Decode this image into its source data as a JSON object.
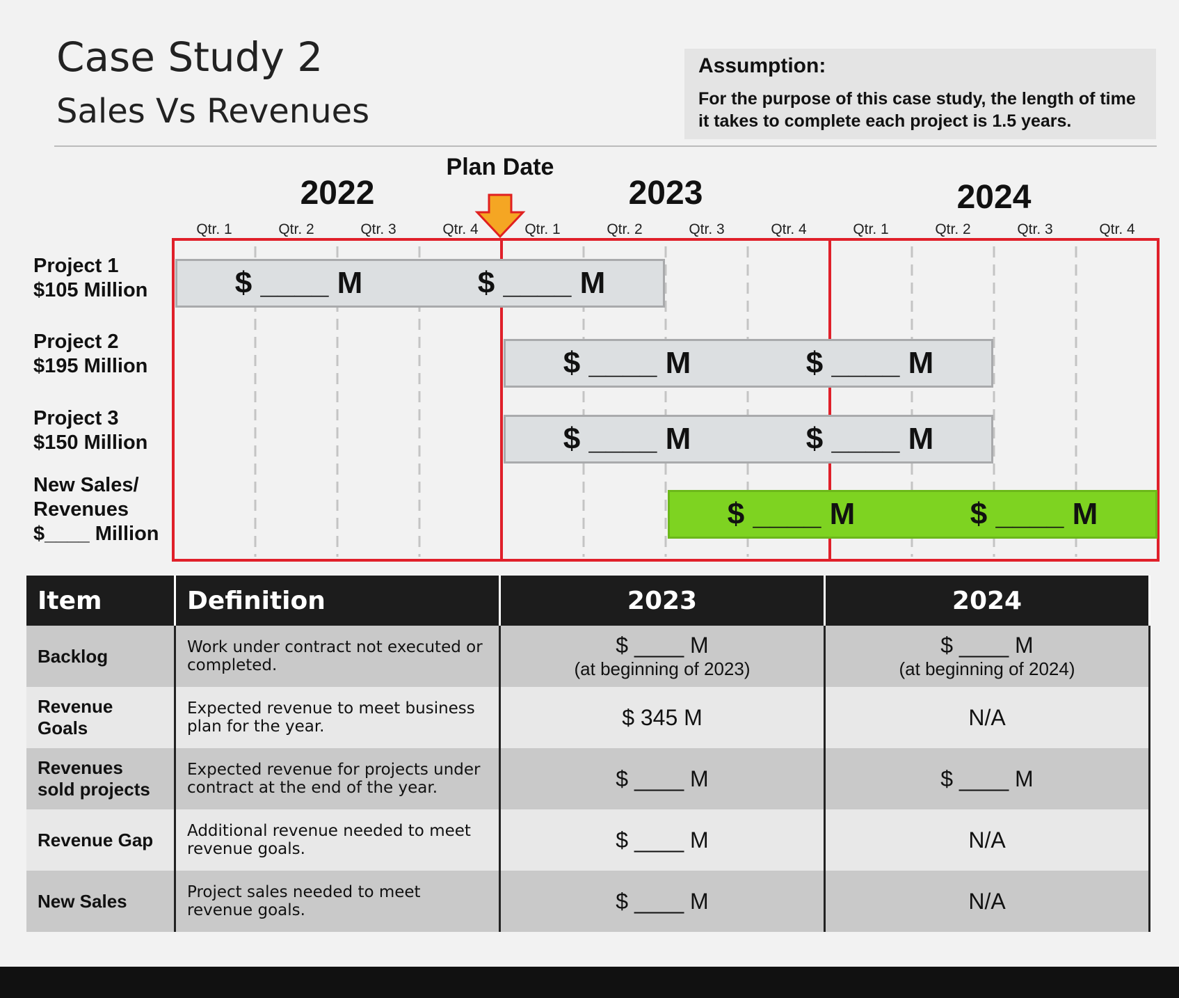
{
  "header": {
    "title": "Case Study 2",
    "subtitle": "Sales Vs Revenues"
  },
  "assumption": {
    "title": "Assumption:",
    "text": "For the purpose of this case study, the length of time it takes to complete each project is 1.5 years."
  },
  "timeline": {
    "plan_date": "Plan Date",
    "years": [
      "2022",
      "2023",
      "2024"
    ],
    "quarters": [
      "Qtr. 1",
      "Qtr. 2",
      "Qtr. 3",
      "Qtr. 4",
      "Qtr. 1",
      "Qtr. 2",
      "Qtr. 3",
      "Qtr. 4",
      "Qtr. 1",
      "Qtr. 2",
      "Qtr. 3",
      "Qtr. 4"
    ],
    "rows": [
      {
        "label": [
          "Project 1",
          "$105 Million"
        ],
        "bar": [
          "$ ____ M",
          "$ ____ M"
        ]
      },
      {
        "label": [
          "Project 2",
          "$195 Million"
        ],
        "bar": [
          "$ ____ M",
          "$ ____ M"
        ]
      },
      {
        "label": [
          "Project 3",
          "$150 Million"
        ],
        "bar": [
          "$ ____ M",
          "$ ____ M"
        ]
      },
      {
        "label": [
          "New Sales/",
          "Revenues",
          "$____ Million"
        ],
        "bar": [
          "$ ____ M",
          "$ ____ M"
        ]
      }
    ]
  },
  "table": {
    "headers": [
      "Item",
      "Definition",
      "2023",
      "2024"
    ],
    "rows": [
      [
        "Backlog",
        "Work under contract not executed or completed.",
        {
          "main": "$ ____ M",
          "note": "(at beginning of 2023)"
        },
        {
          "main": "$ ____ M",
          "note": "(at beginning of 2024)"
        }
      ],
      [
        "Revenue Goals",
        "Expected revenue to meet business plan for the year.",
        "$ 345 M",
        "N/A"
      ],
      [
        "Revenues sold projects",
        "Expected revenue for projects under contract at the end of the year.",
        "$ ____ M",
        "$ ____ M"
      ],
      [
        "Revenue Gap",
        "Additional revenue needed to meet revenue goals.",
        "$ ____ M",
        "N/A"
      ],
      [
        "New Sales",
        "Project sales needed to meet revenue goals.",
        "$ ____ M",
        "N/A"
      ]
    ]
  }
}
